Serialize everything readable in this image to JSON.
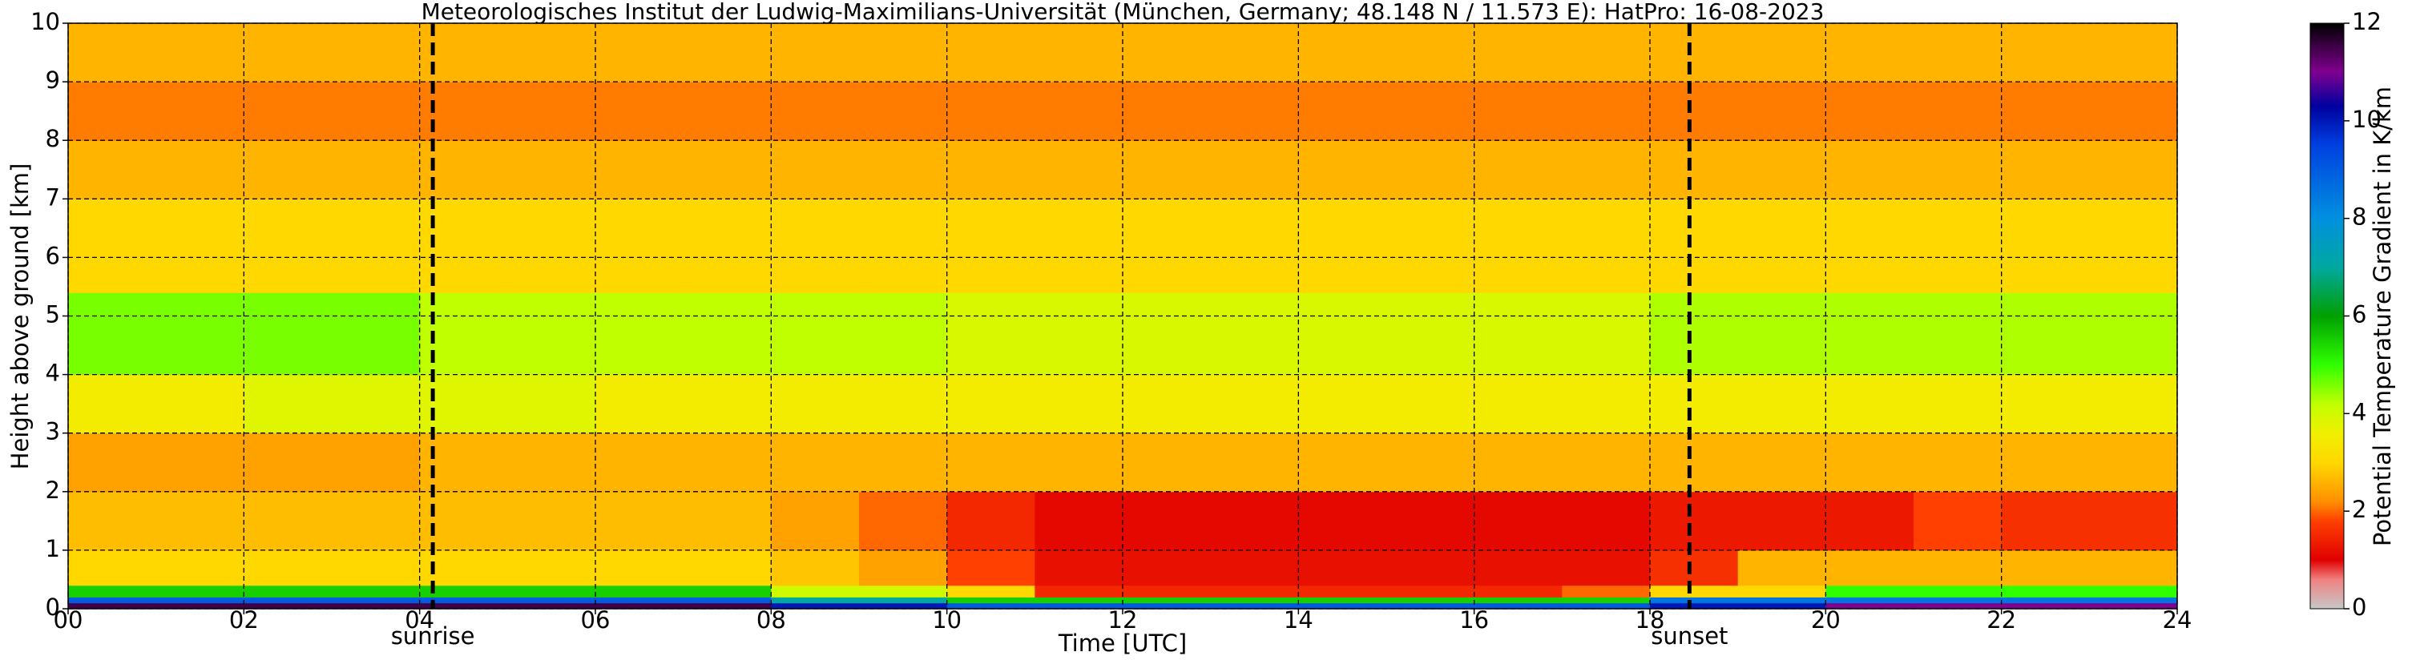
{
  "chart_data": {
    "type": "heatmap",
    "title": "Meteorologisches Institut der Ludwig-Maximilians-Universität (München, Germany; 48.148 N / 11.573 E):    HatPro: 16-08-2023",
    "xlabel": "Time [UTC]",
    "ylabel": "Height above ground [km]",
    "colorbar_label": "Potential Temperature Gradient in K/km",
    "xlim": [
      0,
      24
    ],
    "ylim": [
      0,
      10
    ],
    "clim": [
      0,
      12
    ],
    "xticks": [
      {
        "value": 0,
        "label": "00"
      },
      {
        "value": 2,
        "label": "02"
      },
      {
        "value": 4,
        "label": "04"
      },
      {
        "value": 6,
        "label": "06"
      },
      {
        "value": 8,
        "label": "08"
      },
      10,
      12,
      14,
      16,
      18,
      20,
      22,
      24
    ],
    "yticks": [
      0,
      1,
      2,
      3,
      4,
      5,
      6,
      7,
      8,
      9,
      10
    ],
    "cticks": [
      0,
      2,
      4,
      6,
      8,
      10,
      12
    ],
    "grid": true,
    "annotations": [
      {
        "text": "sunrise",
        "x": 4.15
      },
      {
        "text": "sunset",
        "x": 18.45
      }
    ],
    "colorscale": [
      {
        "value": 0,
        "color": "#c8c8c8"
      },
      {
        "value": 0.6,
        "color": "#f08080"
      },
      {
        "value": 1,
        "color": "#e00000"
      },
      {
        "value": 1.8,
        "color": "#ff4000"
      },
      {
        "value": 2.2,
        "color": "#ff9000"
      },
      {
        "value": 3,
        "color": "#ffd800"
      },
      {
        "value": 3.6,
        "color": "#f0f000"
      },
      {
        "value": 4.2,
        "color": "#c0ff00"
      },
      {
        "value": 5,
        "color": "#30ff00"
      },
      {
        "value": 6,
        "color": "#00a000"
      },
      {
        "value": 7,
        "color": "#00a8a0"
      },
      {
        "value": 8,
        "color": "#0090e0"
      },
      {
        "value": 9.5,
        "color": "#0040e0"
      },
      {
        "value": 10.3,
        "color": "#0000a0"
      },
      {
        "value": 11,
        "color": "#800090"
      },
      {
        "value": 12,
        "color": "#000000"
      }
    ],
    "x_edges": [
      0,
      1,
      2,
      3,
      4,
      5,
      6,
      7,
      8,
      9,
      10,
      11,
      12,
      13,
      14,
      15,
      16,
      17,
      18,
      19,
      20,
      21,
      22,
      23,
      24
    ],
    "y_edges": [
      0,
      0.1,
      0.2,
      0.4,
      1,
      2,
      3,
      4,
      5.4,
      7,
      8,
      9,
      10
    ],
    "values": [
      [
        11.5,
        11.5,
        11.5,
        11.5,
        11.5,
        11.5,
        11.5,
        11.5,
        10,
        10,
        9,
        9,
        9,
        9,
        9,
        9,
        9,
        9,
        10,
        10,
        11,
        11,
        11,
        11
      ],
      [
        9,
        9,
        9,
        9,
        9,
        9,
        9,
        9,
        7,
        7,
        5.5,
        5.5,
        5.5,
        5.5,
        5.5,
        5.5,
        5.5,
        5.5,
        8.5,
        8.5,
        8.5,
        8.5,
        8.5,
        8.5
      ],
      [
        5.5,
        5.5,
        5.5,
        5.5,
        5.5,
        5.5,
        5.5,
        5.5,
        4,
        4,
        3,
        1.5,
        1.5,
        1.5,
        1.5,
        1.5,
        1.5,
        2,
        3,
        3,
        5,
        5,
        5,
        5
      ],
      [
        3,
        3,
        3,
        3,
        3,
        3,
        3,
        3,
        2.8,
        2.4,
        1.8,
        1.2,
        1.2,
        1.2,
        1.2,
        1.2,
        1.2,
        1.2,
        1.6,
        2.6,
        2.6,
        2.6,
        2.6,
        2.6
      ],
      [
        2.7,
        2.7,
        2.7,
        2.7,
        2.7,
        2.7,
        2.7,
        2.7,
        2.4,
        2,
        1.5,
        1.1,
        1.1,
        1.1,
        1.1,
        1.1,
        1.1,
        1.1,
        1.3,
        1.3,
        1.3,
        1.8,
        1.6,
        1.6
      ],
      [
        2.4,
        2.4,
        2.4,
        2.4,
        2.6,
        2.6,
        2.6,
        2.6,
        2.6,
        2.6,
        2.6,
        2.6,
        2.6,
        2.6,
        2.6,
        2.6,
        2.6,
        2.6,
        2.6,
        2.6,
        2.6,
        2.6,
        2.6,
        2.6
      ],
      [
        3.5,
        3.5,
        3.8,
        3.8,
        3.8,
        3.8,
        3.5,
        3.5,
        3.5,
        3.5,
        3.5,
        3.5,
        3.5,
        3.5,
        3.5,
        3.5,
        3.5,
        3.5,
        3.5,
        3.5,
        3.5,
        3.5,
        3.5,
        3.5
      ],
      [
        4.6,
        4.6,
        4.6,
        4.6,
        4.2,
        4.2,
        4.2,
        4.2,
        4.2,
        4.2,
        3.9,
        3.9,
        3.9,
        3.9,
        3.9,
        3.9,
        3.9,
        3.9,
        4.3,
        4.3,
        4.3,
        4.3,
        4.3,
        4.3
      ],
      [
        3,
        3,
        3,
        3,
        3,
        3,
        3,
        3,
        3,
        3,
        3,
        3,
        3,
        3,
        3,
        3,
        3,
        3,
        3,
        3,
        3,
        3,
        3,
        3
      ],
      [
        2.6,
        2.6,
        2.6,
        2.6,
        2.6,
        2.6,
        2.6,
        2.6,
        2.6,
        2.6,
        2.6,
        2.6,
        2.6,
        2.6,
        2.6,
        2.6,
        2.6,
        2.6,
        2.6,
        2.6,
        2.6,
        2.6,
        2.6,
        2.6
      ],
      [
        2.1,
        2.1,
        2.1,
        2.1,
        2.1,
        2.1,
        2.1,
        2.1,
        2.1,
        2.1,
        2.1,
        2.1,
        2.1,
        2.1,
        2.1,
        2.1,
        2.1,
        2.1,
        2.1,
        2.1,
        2.1,
        2.1,
        2.1,
        2.1
      ],
      [
        2.6,
        2.6,
        2.6,
        2.6,
        2.6,
        2.6,
        2.6,
        2.6,
        2.6,
        2.6,
        2.6,
        2.6,
        2.6,
        2.6,
        2.6,
        2.6,
        2.6,
        2.6,
        2.6,
        2.6,
        2.6,
        2.6,
        2.6,
        2.6
      ]
    ]
  }
}
